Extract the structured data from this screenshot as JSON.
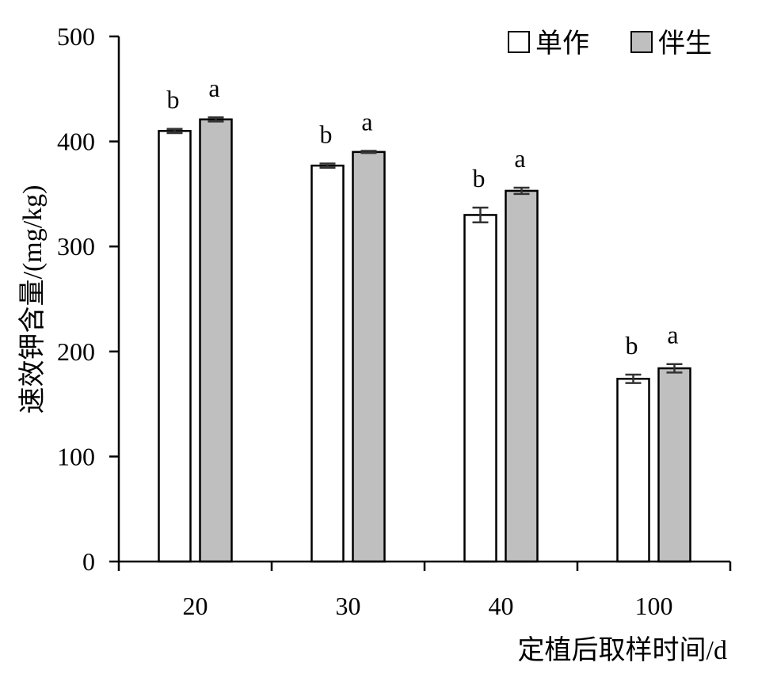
{
  "chart_data": {
    "type": "bar",
    "title": "",
    "xlabel": "定植后取样时间/d",
    "ylabel": "速效钾含量/(mg/kg)",
    "ylim": [
      0,
      500
    ],
    "yticks": [
      "0",
      "100",
      "200",
      "300",
      "400",
      "500"
    ],
    "categories": [
      "20",
      "30",
      "40",
      "100"
    ],
    "series": [
      {
        "name": "单作",
        "color": "#ffffff",
        "values": [
          410,
          377,
          330,
          174
        ],
        "errors": [
          2,
          2,
          7,
          4
        ],
        "significance": [
          "b",
          "b",
          "b",
          "b"
        ]
      },
      {
        "name": "伴生",
        "color": "#bfbfbf",
        "values": [
          421,
          390,
          353,
          184
        ],
        "errors": [
          2,
          1,
          3,
          4
        ],
        "significance": [
          "a",
          "a",
          "a",
          "a"
        ]
      }
    ],
    "legend_position": "top-right",
    "grid": false
  }
}
